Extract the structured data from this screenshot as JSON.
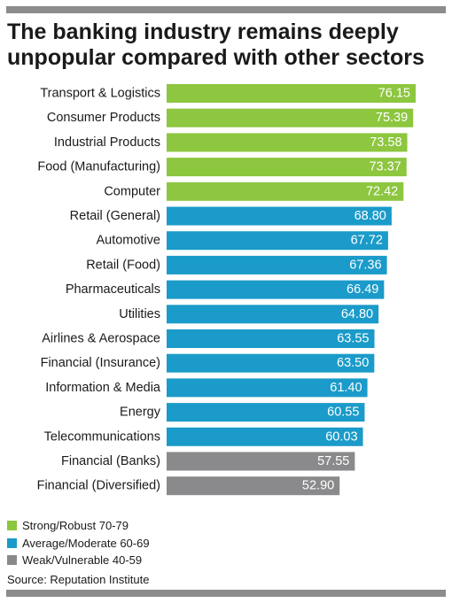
{
  "title_lines": [
    "The banking industry remains deeply",
    "unpopular compared with other sectors"
  ],
  "colors": {
    "strong": "#8dc63f",
    "average": "#1b9bc9",
    "weak": "#8a8a8c",
    "rule": "#8c8c8c"
  },
  "chart_data": {
    "type": "bar",
    "orientation": "horizontal",
    "categories": [
      "Transport & Logistics",
      "Consumer Products",
      "Industrial Products",
      "Food (Manufacturing)",
      "Computer",
      "Retail (General)",
      "Automotive",
      "Retail (Food)",
      "Pharmaceuticals",
      "Utilities",
      "Airlines & Aerospace",
      "Financial (Insurance)",
      "Information & Media",
      "Energy",
      "Telecommunications",
      "Financial (Banks)",
      "Financial (Diversified)"
    ],
    "values": [
      76.15,
      75.39,
      73.58,
      73.37,
      72.42,
      68.8,
      67.72,
      67.36,
      66.49,
      64.8,
      63.55,
      63.5,
      61.4,
      60.55,
      60.03,
      57.55,
      52.9
    ],
    "value_labels": [
      "76.15",
      "75.39",
      "73.58",
      "73.37",
      "72.42",
      "68.80",
      "67.72",
      "67.36",
      "66.49",
      "64.80",
      "63.55",
      "63.50",
      "61.40",
      "60.55",
      "60.03",
      "57.55",
      "52.90"
    ],
    "groups": [
      "strong",
      "strong",
      "strong",
      "strong",
      "strong",
      "average",
      "average",
      "average",
      "average",
      "average",
      "average",
      "average",
      "average",
      "average",
      "average",
      "weak",
      "weak"
    ],
    "grid": false,
    "legend_position": "bottom-left"
  },
  "legend": [
    {
      "key": "strong",
      "label": "Strong/Robust 70-79"
    },
    {
      "key": "average",
      "label": "Average/Moderate 60-69"
    },
    {
      "key": "weak",
      "label": "Weak/Vulnerable 40-59"
    }
  ],
  "source": "Source: Reputation Institute"
}
